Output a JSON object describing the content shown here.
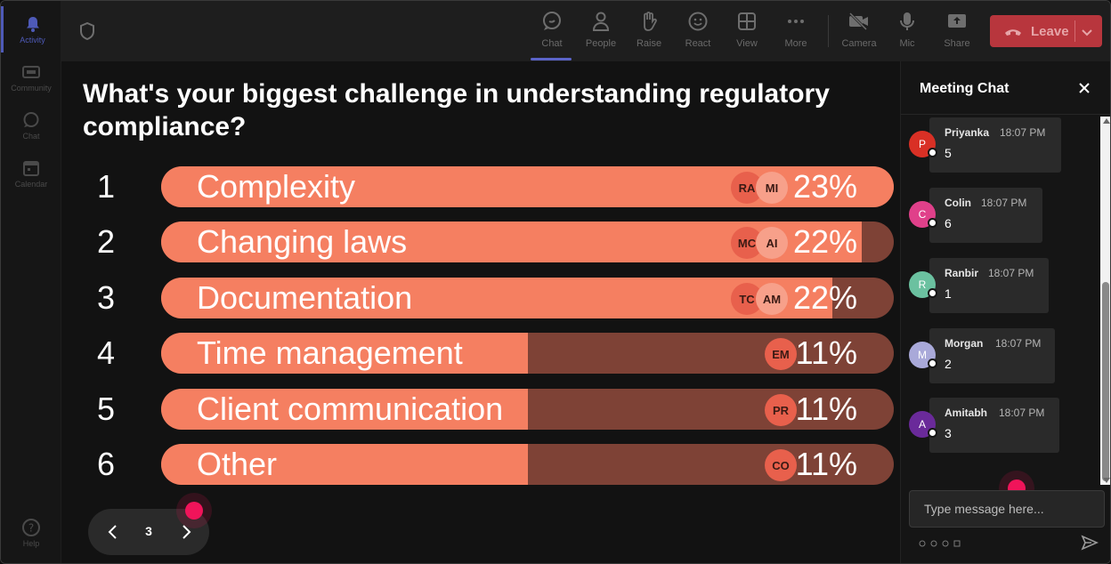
{
  "rail": {
    "items": [
      {
        "label": "Activity",
        "icon": "bell-icon",
        "active": true
      },
      {
        "label": "Community",
        "icon": "community-icon"
      },
      {
        "label": "Chat",
        "icon": "chat-icon"
      },
      {
        "label": "Calendar",
        "icon": "calendar-icon"
      },
      {
        "label": "Help",
        "icon": "help-icon"
      }
    ]
  },
  "toolbar": {
    "buttons": [
      {
        "label": "Chat",
        "icon": "chat-icon",
        "active": true
      },
      {
        "label": "People",
        "icon": "people-icon"
      },
      {
        "label": "Raise",
        "icon": "raise-hand-icon"
      },
      {
        "label": "React",
        "icon": "smiley-icon"
      },
      {
        "label": "View",
        "icon": "grid-view-icon"
      },
      {
        "label": "More",
        "icon": "more-icon"
      },
      {
        "label": "Camera",
        "icon": "camera-off-icon"
      },
      {
        "label": "Mic",
        "icon": "mic-icon"
      },
      {
        "label": "Share",
        "icon": "share-icon"
      }
    ],
    "leave_label": "Leave"
  },
  "poll": {
    "question": "What's your biggest challenge in understanding regulatory compliance?",
    "options": [
      {
        "num": "1",
        "label": "Complexity",
        "pct": "23%",
        "value": 23,
        "avatars": [
          "RA",
          "MI"
        ]
      },
      {
        "num": "2",
        "label": "Changing laws",
        "pct": "22%",
        "value": 22,
        "avatars": [
          "MC",
          "AI"
        ]
      },
      {
        "num": "3",
        "label": "Documentation",
        "pct": "22%",
        "value": 22,
        "avatars": [
          "TC",
          "AM"
        ]
      },
      {
        "num": "4",
        "label": "Time management",
        "pct": "11%",
        "value": 11,
        "avatars": [
          "EM"
        ]
      },
      {
        "num": "5",
        "label": "Client communication",
        "pct": "11%",
        "value": 11,
        "avatars": [
          "PR"
        ]
      },
      {
        "num": "6",
        "label": "Other",
        "pct": "11%",
        "value": 11,
        "avatars": [
          "CO"
        ]
      }
    ],
    "page": "3"
  },
  "chat": {
    "title": "Meeting Chat",
    "messages": [
      {
        "initial": "P",
        "name": "Priyanka",
        "time": "18:07 PM",
        "text": "5",
        "color": "#d93025"
      },
      {
        "initial": "C",
        "name": "Colin",
        "time": "18:07 PM",
        "text": "6",
        "color": "#e0408a"
      },
      {
        "initial": "R",
        "name": "Ranbir",
        "time": "18:07 PM",
        "text": "1",
        "color": "#6bc1a0"
      },
      {
        "initial": "M",
        "name": "Morgan",
        "time": "18:07 PM",
        "text": "2",
        "color": "#a9a9d9"
      },
      {
        "initial": "A",
        "name": "Amitabh",
        "time": "18:07 PM",
        "text": "3",
        "color": "#6a2a9a"
      }
    ],
    "input_placeholder": "Type message here..."
  },
  "colors": {
    "bar_fill": "#f57f61",
    "bar_track": "#7e4236",
    "leave": "#b8363d",
    "accent": "#5b64c8",
    "pointer": "#f0145a"
  }
}
